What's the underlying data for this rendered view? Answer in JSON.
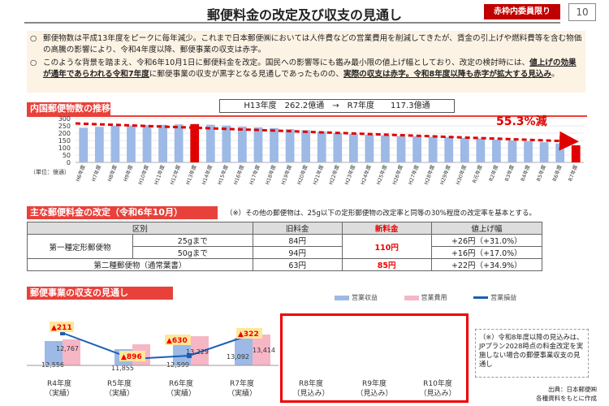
{
  "header": {
    "title": "郵便料金の改定及び収支の見通し",
    "badge": "赤枠内委員限り",
    "page_number": "10"
  },
  "notes": [
    {
      "bullet": "○",
      "text": "郵便物数は平成13年度をピークに毎年減少。これまで日本郵便㈱においては人件費などの営業費用を削減してきたが、賃金の引上げや燃料費等を含む物価の高騰の影響により、令和4年度以降、郵便事業の収支は赤字。"
    },
    {
      "bullet": "○",
      "text_a": "このような背景を踏まえ、令和6年10月1日に郵便料金を改定。国民への影響等にも鑑み最小限の値上げ幅としており、改定の検討時には、",
      "text_u1": "値上げの効果が通年であらわれる令和7年度",
      "text_b": "に郵便事業の収支が黒字となる見通しであったものの、",
      "text_u2": "実際の収支は赤字。令和8年度以降も赤字が拡大する見込み",
      "text_c": "。"
    }
  ],
  "volume_section": {
    "heading": "内国郵便物数の推移",
    "summary": "H13年度　262.2億通　→　R7年度　　117.3億通",
    "decline_label": "55.3%減",
    "unit_label": "（単位：億通）"
  },
  "chart_data": {
    "type": "bar",
    "title": "内国郵便物数の推移",
    "ylabel": "",
    "ylim": [
      0,
      300
    ],
    "yticks": [
      0,
      50,
      100,
      150,
      200,
      250,
      300
    ],
    "categories": [
      "H6年度",
      "H7年度",
      "H8年度",
      "H9年度",
      "H10年度",
      "H11年度",
      "H12年度",
      "H13年度",
      "H14年度",
      "H15年度",
      "H16年度",
      "H17年度",
      "H18年度",
      "H19年度",
      "H20年度",
      "H21年度",
      "H22年度",
      "H23年度",
      "H24年度",
      "H25年度",
      "H26年度",
      "H27年度",
      "H28年度",
      "H29年度",
      "H30年度",
      "R元年度",
      "R2年度",
      "R3年度",
      "R4年度",
      "R5年度",
      "R6年度",
      "R7年度"
    ],
    "values": [
      237,
      243,
      250,
      252,
      255,
      257,
      260,
      262.2,
      258,
      252,
      245,
      240,
      235,
      228,
      220,
      210,
      200,
      195,
      190,
      185,
      180,
      178,
      175,
      172,
      168,
      163,
      155,
      150,
      145,
      138,
      130,
      117.3
    ],
    "highlight": [
      "H13年度",
      "R7年度"
    ],
    "bar_color": "#9db9e6",
    "highlight_color": "#e00000"
  },
  "rate_section": {
    "heading": "主な郵便料金の改定（令和6年10月）",
    "note": "（※）その他の郵便物は、25g以下の定形郵便物の改定率と同等の30%程度の改定率を基本とする。",
    "columns": [
      "区別",
      "旧料金",
      "新料金",
      "値上げ幅"
    ],
    "rows": [
      {
        "category": "第一種定形郵便物",
        "sub": "25gまで",
        "old": "84円",
        "new": "110円",
        "increase": "+26円（+31.0%）"
      },
      {
        "category": "",
        "sub": "50gまで",
        "old": "94円",
        "new": "",
        "increase": "+16円（+17.0%）"
      },
      {
        "category": "第二種郵便物（通常葉書）",
        "sub": "",
        "old": "63円",
        "new": "85円",
        "increase": "+22円（+34.9%）"
      }
    ]
  },
  "finance_section": {
    "heading": "郵便事業の収支の見通し",
    "legend": [
      "営業収益",
      "営業費用",
      "営業損益"
    ],
    "colors": {
      "revenue": "#9db9e6",
      "cost": "#f6b6c6",
      "profit": "#1a5fb4"
    },
    "years": [
      {
        "label": "R4年度",
        "sub": "（実績）",
        "revenue": "12,556",
        "cost": "12,767",
        "loss": "▲211"
      },
      {
        "label": "R5年度",
        "sub": "（実績）",
        "revenue": "11,855",
        "cost": "",
        "loss": "▲896"
      },
      {
        "label": "R6年度",
        "sub": "（実績）",
        "revenue": "12,599",
        "cost": "13,229",
        "loss": "▲630"
      },
      {
        "label": "R7年度",
        "sub": "（実績）",
        "revenue": "13,092",
        "cost": "13,414",
        "loss": "▲322"
      },
      {
        "label": "R8年度",
        "sub": "（見込み）"
      },
      {
        "label": "R9年度",
        "sub": "（見込み）"
      },
      {
        "label": "R10年度",
        "sub": "（見込み）"
      }
    ],
    "side_note": "（※）令和8年度以降の見込みは、JPプラン2028時点の料金改定を実施しない場合の郵便事業収支の見通し",
    "source": "出典：日本郵便㈱\n各種資料をもとに作成"
  }
}
